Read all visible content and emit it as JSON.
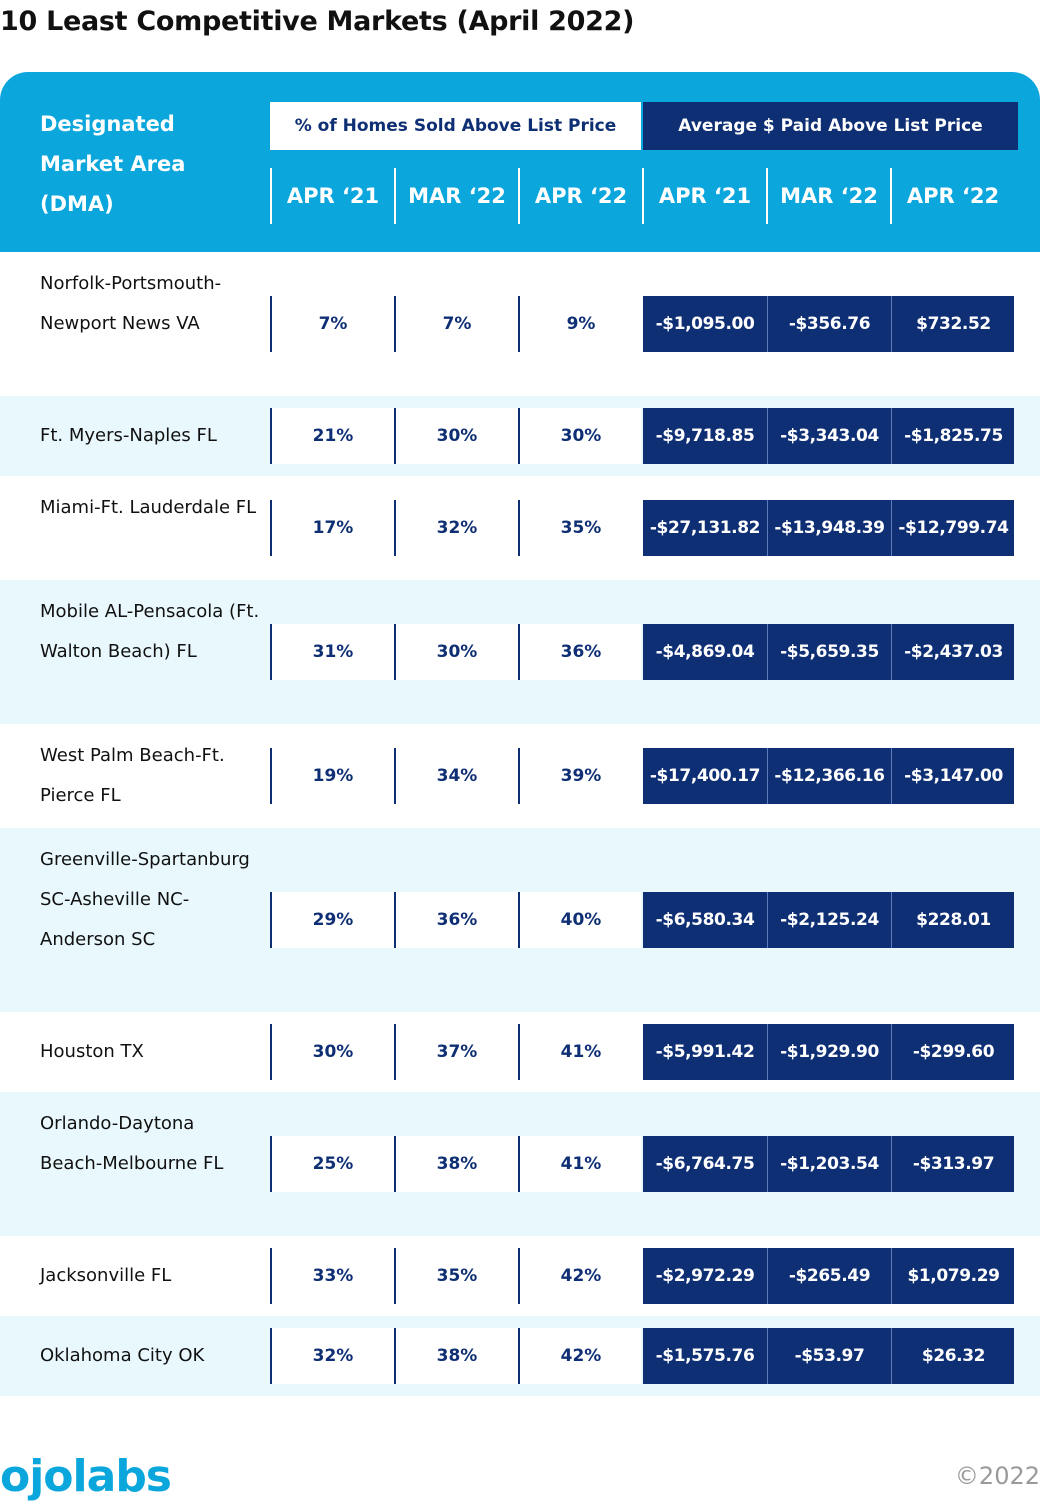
{
  "chart_data": {
    "type": "table",
    "title": "10 Least Competitive Markets (April 2022)",
    "row_header": "Designated Market Area (DMA)",
    "column_groups": [
      {
        "name": "% of Homes Sold Above List Price",
        "columns": [
          "APR ‘21",
          "MAR ‘22",
          "APR ‘22"
        ]
      },
      {
        "name": "Average $ Paid Above List Price",
        "columns": [
          "APR ‘21",
          "MAR ‘22",
          "APR ‘22"
        ]
      }
    ],
    "rows": [
      {
        "dma": "Norfolk-Portsmouth-Newport News VA",
        "pct": [
          "7%",
          "7%",
          "9%"
        ],
        "avg": [
          "-$1,095.00",
          "-$356.76",
          "$732.52"
        ]
      },
      {
        "dma": "Ft. Myers-Naples FL",
        "pct": [
          "21%",
          "30%",
          "30%"
        ],
        "avg": [
          "-$9,718.85",
          "-$3,343.04",
          "-$1,825.75"
        ]
      },
      {
        "dma": "Miami-Ft. Lauderdale FL",
        "pct": [
          "17%",
          "32%",
          "35%"
        ],
        "avg": [
          "-$27,131.82",
          "-$13,948.39",
          "-$12,799.74"
        ]
      },
      {
        "dma": "Mobile AL-Pensacola (Ft. Walton Beach) FL",
        "pct": [
          "31%",
          "30%",
          "36%"
        ],
        "avg": [
          "-$4,869.04",
          "-$5,659.35",
          "-$2,437.03"
        ]
      },
      {
        "dma": "West Palm Beach-Ft. Pierce FL",
        "pct": [
          "19%",
          "34%",
          "39%"
        ],
        "avg": [
          "-$17,400.17",
          "-$12,366.16",
          "-$3,147.00"
        ]
      },
      {
        "dma": "Greenville-Spartanburg SC-Asheville NC-Anderson SC",
        "pct": [
          "29%",
          "36%",
          "40%"
        ],
        "avg": [
          "-$6,580.34",
          "-$2,125.24",
          "$228.01"
        ]
      },
      {
        "dma": "Houston TX",
        "pct": [
          "30%",
          "37%",
          "41%"
        ],
        "avg": [
          "-$5,991.42",
          "-$1,929.90",
          "-$299.60"
        ]
      },
      {
        "dma": "Orlando-Daytona Beach-Melbourne FL",
        "pct": [
          "25%",
          "38%",
          "41%"
        ],
        "avg": [
          "-$6,764.75",
          "-$1,203.54",
          "-$313.97"
        ]
      },
      {
        "dma": "Jacksonville FL",
        "pct": [
          "33%",
          "35%",
          "42%"
        ],
        "avg": [
          "-$2,972.29",
          "-$265.49",
          "$1,079.29"
        ]
      },
      {
        "dma": "Oklahoma City OK",
        "pct": [
          "32%",
          "38%",
          "42%"
        ],
        "avg": [
          "-$1,575.76",
          "-$53.97",
          "$26.32"
        ]
      }
    ]
  },
  "footer": {
    "logo": "ojolabs",
    "copyright": "©2022"
  },
  "colors": {
    "header_bg": "#0aa6dc",
    "navy": "#0f2f74",
    "alt_row": "#e8f8fd",
    "logo": "#0aa6dc"
  }
}
